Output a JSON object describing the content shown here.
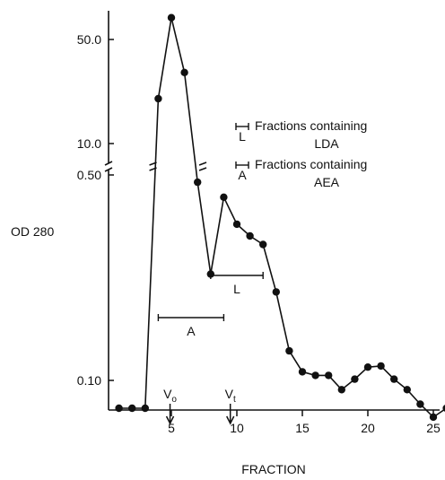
{
  "chart_data": {
    "type": "line",
    "xlabel": "FRACTION",
    "ylabel": "OD 280",
    "xlim": [
      0,
      26
    ],
    "x_ticks": [
      "5",
      "10",
      "15",
      "20",
      "25"
    ],
    "y_scale": "log, broken axis",
    "upper_y_ticks": [
      "50.0",
      "10.0"
    ],
    "lower_y_ticks": [
      "0.50",
      "0.10"
    ],
    "series": [
      {
        "x": [
          1,
          2,
          3,
          4,
          5,
          6,
          7,
          8,
          9,
          10,
          11,
          12,
          13,
          14,
          15,
          16,
          17,
          18,
          19,
          20,
          21,
          22,
          23,
          24,
          25,
          26
        ],
        "y": [
          0.055,
          0.055,
          0.056,
          20.0,
          70.0,
          30.0,
          5.5,
          0.23,
          0.42,
          0.34,
          0.31,
          0.29,
          0.2,
          0.126,
          0.107,
          0.104,
          0.104,
          0.093,
          0.101,
          0.111,
          0.112,
          0.101,
          0.093,
          0.083,
          0.075,
          0.063
        ]
      }
    ],
    "markers": [
      {
        "label": "V",
        "sub": "o",
        "x": 4.9
      },
      {
        "label": "V",
        "sub": "t",
        "x": 9.5
      }
    ],
    "ranges": [
      {
        "label": "A",
        "x_start": 4,
        "x_end": 9
      },
      {
        "label": "L",
        "x_start": 8,
        "x_end": 12
      }
    ],
    "legend": [
      {
        "symbol": "L",
        "line1": "Fractions containing",
        "line2": "LDA"
      },
      {
        "symbol": "A",
        "line1": "Fractions containing",
        "line2": "AEA"
      }
    ]
  }
}
